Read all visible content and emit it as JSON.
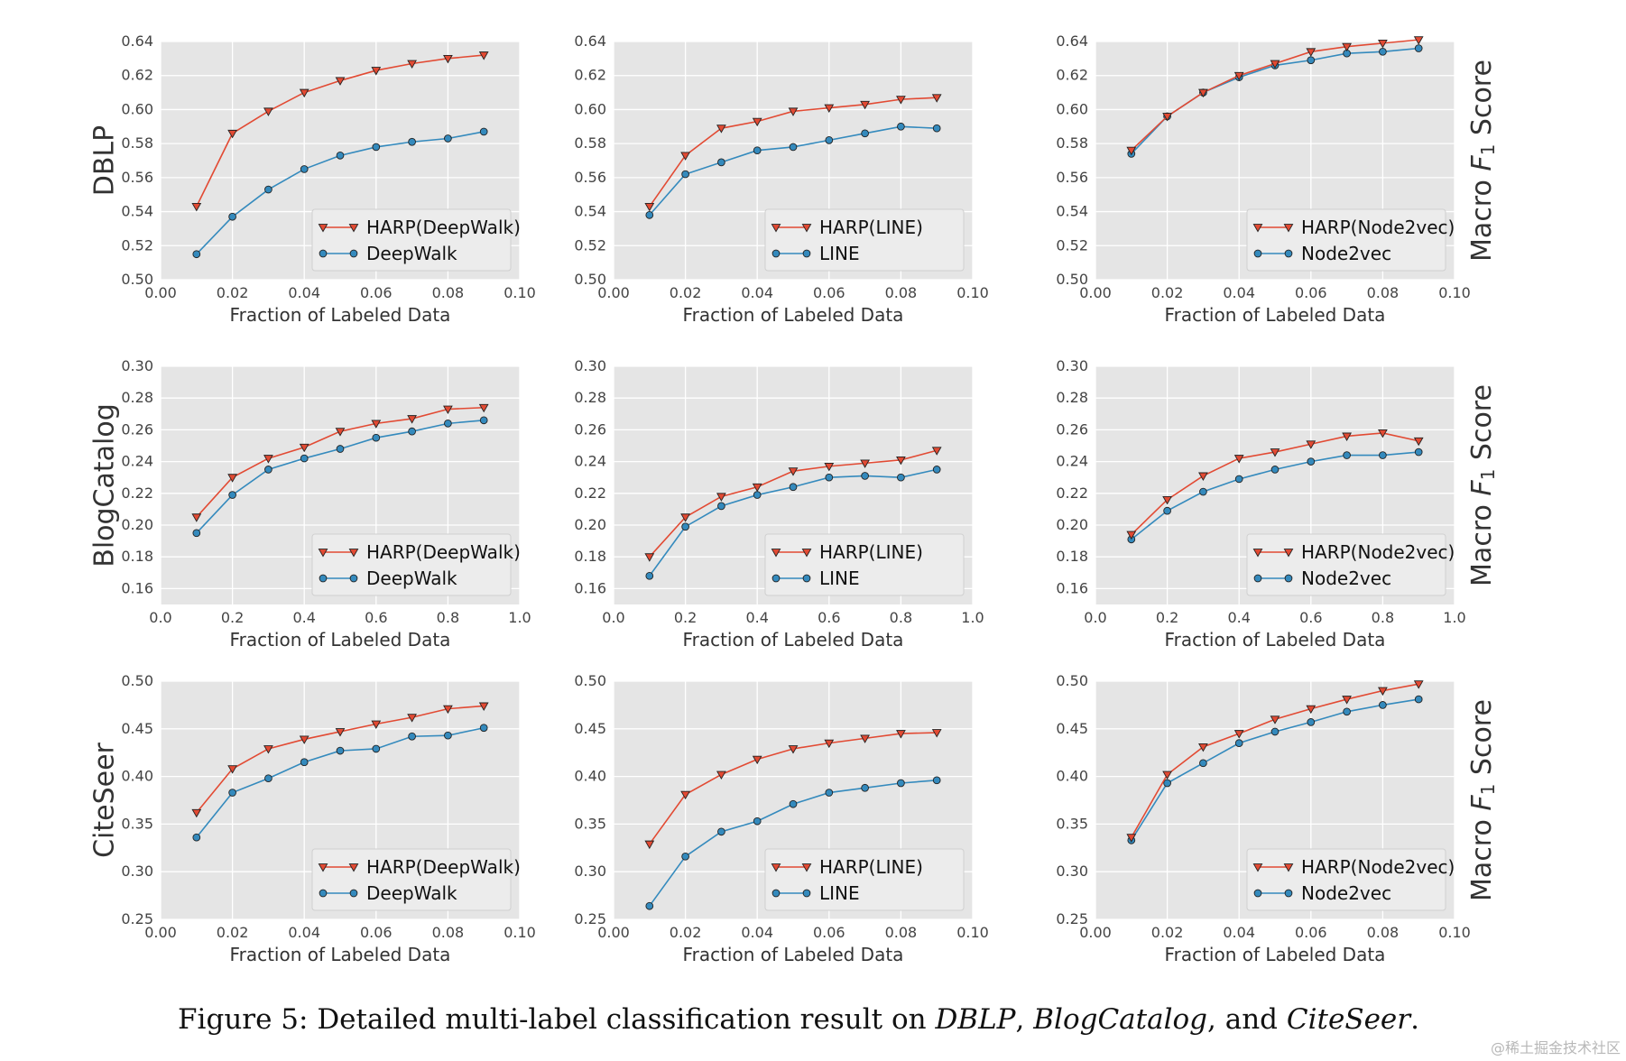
{
  "caption": {
    "prefix": "Figure 5: Detailed multi-label classification result on ",
    "ds1": "DBLP",
    "sep1": ", ",
    "ds2": "BlogCatalog",
    "sep2": ", and ",
    "ds3": "CiteSeer",
    "suffix": "."
  },
  "watermark": "@稀土掘金技术社区",
  "colors": {
    "harp": "#E24A33",
    "base": "#348ABD",
    "panel_bg": "#E5E5E5",
    "grid": "#FFFFFF"
  },
  "chart_data": [
    {
      "type": "line",
      "row": 0,
      "col": 0,
      "ylabel": "DBLP",
      "y2label": "",
      "xlabel": "Fraction of Labeled Data",
      "xlim": [
        0,
        0.1
      ],
      "xticks": [
        "0.00",
        "0.02",
        "0.04",
        "0.06",
        "0.08",
        "0.10"
      ],
      "ylim": [
        0.5,
        0.64
      ],
      "yticks": [
        "0.50",
        "0.52",
        "0.54",
        "0.56",
        "0.58",
        "0.60",
        "0.62",
        "0.64"
      ],
      "legend": "lower-right",
      "x": [
        0.01,
        0.02,
        0.03,
        0.04,
        0.05,
        0.06,
        0.07,
        0.08,
        0.09
      ],
      "series": [
        {
          "name": "HARP(DeepWalk)",
          "marker": "triangle",
          "values": [
            0.543,
            0.586,
            0.599,
            0.61,
            0.617,
            0.623,
            0.627,
            0.63,
            0.632
          ]
        },
        {
          "name": "DeepWalk",
          "marker": "circle",
          "values": [
            0.515,
            0.537,
            0.553,
            0.565,
            0.573,
            0.578,
            0.581,
            0.583,
            0.587
          ]
        }
      ]
    },
    {
      "type": "line",
      "row": 0,
      "col": 1,
      "ylabel": "",
      "y2label": "",
      "xlabel": "Fraction of Labeled Data",
      "xlim": [
        0,
        0.1
      ],
      "xticks": [
        "0.00",
        "0.02",
        "0.04",
        "0.06",
        "0.08",
        "0.10"
      ],
      "ylim": [
        0.5,
        0.64
      ],
      "yticks": [
        "0.50",
        "0.52",
        "0.54",
        "0.56",
        "0.58",
        "0.60",
        "0.62",
        "0.64"
      ],
      "legend": "lower-right",
      "x": [
        0.01,
        0.02,
        0.03,
        0.04,
        0.05,
        0.06,
        0.07,
        0.08,
        0.09
      ],
      "series": [
        {
          "name": "HARP(LINE)",
          "marker": "triangle",
          "values": [
            0.543,
            0.573,
            0.589,
            0.593,
            0.599,
            0.601,
            0.603,
            0.606,
            0.607
          ]
        },
        {
          "name": "LINE",
          "marker": "circle",
          "values": [
            0.538,
            0.562,
            0.569,
            0.576,
            0.578,
            0.582,
            0.586,
            0.59,
            0.589
          ]
        }
      ]
    },
    {
      "type": "line",
      "row": 0,
      "col": 2,
      "ylabel": "",
      "y2label": "Macro F1 Score",
      "xlabel": "Fraction of Labeled Data",
      "xlim": [
        0,
        0.1
      ],
      "xticks": [
        "0.00",
        "0.02",
        "0.04",
        "0.06",
        "0.08",
        "0.10"
      ],
      "ylim": [
        0.5,
        0.64
      ],
      "yticks": [
        "0.50",
        "0.52",
        "0.54",
        "0.56",
        "0.58",
        "0.60",
        "0.62",
        "0.64"
      ],
      "legend": "lower-right",
      "x": [
        0.01,
        0.02,
        0.03,
        0.04,
        0.05,
        0.06,
        0.07,
        0.08,
        0.09
      ],
      "series": [
        {
          "name": "HARP(Node2vec)",
          "marker": "triangle",
          "values": [
            0.576,
            0.596,
            0.61,
            0.62,
            0.627,
            0.634,
            0.637,
            0.639,
            0.641
          ]
        },
        {
          "name": "Node2vec",
          "marker": "circle",
          "values": [
            0.574,
            0.596,
            0.61,
            0.619,
            0.626,
            0.629,
            0.633,
            0.634,
            0.636
          ]
        }
      ]
    },
    {
      "type": "line",
      "row": 1,
      "col": 0,
      "ylabel": "BlogCatalog",
      "y2label": "",
      "xlabel": "Fraction of Labeled Data",
      "xlim": [
        0,
        1.0
      ],
      "xticks": [
        "0.0",
        "0.2",
        "0.4",
        "0.6",
        "0.8",
        "1.0"
      ],
      "ylim": [
        0.15,
        0.3
      ],
      "yticks": [
        "0.16",
        "0.18",
        "0.20",
        "0.22",
        "0.24",
        "0.26",
        "0.28",
        "0.30"
      ],
      "legend": "lower-right",
      "x": [
        0.1,
        0.2,
        0.3,
        0.4,
        0.5,
        0.6,
        0.7,
        0.8,
        0.9
      ],
      "series": [
        {
          "name": "HARP(DeepWalk)",
          "marker": "triangle",
          "values": [
            0.205,
            0.23,
            0.242,
            0.249,
            0.259,
            0.264,
            0.267,
            0.273,
            0.274
          ]
        },
        {
          "name": "DeepWalk",
          "marker": "circle",
          "values": [
            0.195,
            0.219,
            0.235,
            0.242,
            0.248,
            0.255,
            0.259,
            0.264,
            0.266
          ]
        }
      ]
    },
    {
      "type": "line",
      "row": 1,
      "col": 1,
      "ylabel": "",
      "y2label": "",
      "xlabel": "Fraction of Labeled Data",
      "xlim": [
        0,
        1.0
      ],
      "xticks": [
        "0.0",
        "0.2",
        "0.4",
        "0.6",
        "0.8",
        "1.0"
      ],
      "ylim": [
        0.15,
        0.3
      ],
      "yticks": [
        "0.16",
        "0.18",
        "0.20",
        "0.22",
        "0.24",
        "0.26",
        "0.28",
        "0.30"
      ],
      "legend": "lower-right",
      "x": [
        0.1,
        0.2,
        0.3,
        0.4,
        0.5,
        0.6,
        0.7,
        0.8,
        0.9
      ],
      "series": [
        {
          "name": "HARP(LINE)",
          "marker": "triangle",
          "values": [
            0.18,
            0.205,
            0.218,
            0.224,
            0.234,
            0.237,
            0.239,
            0.241,
            0.247
          ]
        },
        {
          "name": "LINE",
          "marker": "circle",
          "values": [
            0.168,
            0.199,
            0.212,
            0.219,
            0.224,
            0.23,
            0.231,
            0.23,
            0.235
          ]
        }
      ]
    },
    {
      "type": "line",
      "row": 1,
      "col": 2,
      "ylabel": "",
      "y2label": "Macro F1 Score",
      "xlabel": "Fraction of Labeled Data",
      "xlim": [
        0,
        1.0
      ],
      "xticks": [
        "0.0",
        "0.2",
        "0.4",
        "0.6",
        "0.8",
        "1.0"
      ],
      "ylim": [
        0.15,
        0.3
      ],
      "yticks": [
        "0.16",
        "0.18",
        "0.20",
        "0.22",
        "0.24",
        "0.26",
        "0.28",
        "0.30"
      ],
      "legend": "lower-right",
      "x": [
        0.1,
        0.2,
        0.3,
        0.4,
        0.5,
        0.6,
        0.7,
        0.8,
        0.9
      ],
      "series": [
        {
          "name": "HARP(Node2vec)",
          "marker": "triangle",
          "values": [
            0.194,
            0.216,
            0.231,
            0.242,
            0.246,
            0.251,
            0.256,
            0.258,
            0.253
          ]
        },
        {
          "name": "Node2vec",
          "marker": "circle",
          "values": [
            0.191,
            0.209,
            0.221,
            0.229,
            0.235,
            0.24,
            0.244,
            0.244,
            0.246
          ]
        }
      ]
    },
    {
      "type": "line",
      "row": 2,
      "col": 0,
      "ylabel": "CiteSeer",
      "y2label": "",
      "xlabel": "Fraction of Labeled Data",
      "xlim": [
        0,
        0.1
      ],
      "xticks": [
        "0.00",
        "0.02",
        "0.04",
        "0.06",
        "0.08",
        "0.10"
      ],
      "ylim": [
        0.25,
        0.5
      ],
      "yticks": [
        "0.25",
        "0.30",
        "0.35",
        "0.40",
        "0.45",
        "0.50"
      ],
      "legend": "lower-right",
      "x": [
        0.01,
        0.02,
        0.03,
        0.04,
        0.05,
        0.06,
        0.07,
        0.08,
        0.09
      ],
      "series": [
        {
          "name": "HARP(DeepWalk)",
          "marker": "triangle",
          "values": [
            0.362,
            0.408,
            0.429,
            0.439,
            0.447,
            0.455,
            0.462,
            0.471,
            0.474
          ]
        },
        {
          "name": "DeepWalk",
          "marker": "circle",
          "values": [
            0.336,
            0.383,
            0.398,
            0.415,
            0.427,
            0.429,
            0.442,
            0.443,
            0.451
          ]
        }
      ]
    },
    {
      "type": "line",
      "row": 2,
      "col": 1,
      "ylabel": "",
      "y2label": "",
      "xlabel": "Fraction of Labeled Data",
      "xlim": [
        0,
        0.1
      ],
      "xticks": [
        "0.00",
        "0.02",
        "0.04",
        "0.06",
        "0.08",
        "0.10"
      ],
      "ylim": [
        0.25,
        0.5
      ],
      "yticks": [
        "0.25",
        "0.30",
        "0.35",
        "0.40",
        "0.45",
        "0.50"
      ],
      "legend": "lower-right",
      "x": [
        0.01,
        0.02,
        0.03,
        0.04,
        0.05,
        0.06,
        0.07,
        0.08,
        0.09
      ],
      "series": [
        {
          "name": "HARP(LINE)",
          "marker": "triangle",
          "values": [
            0.329,
            0.381,
            0.402,
            0.418,
            0.429,
            0.435,
            0.44,
            0.445,
            0.446
          ]
        },
        {
          "name": "LINE",
          "marker": "circle",
          "values": [
            0.264,
            0.316,
            0.342,
            0.353,
            0.371,
            0.383,
            0.388,
            0.393,
            0.396
          ]
        }
      ]
    },
    {
      "type": "line",
      "row": 2,
      "col": 2,
      "ylabel": "",
      "y2label": "Macro F1 Score",
      "xlabel": "Fraction of Labeled Data",
      "xlim": [
        0,
        0.1
      ],
      "xticks": [
        "0.00",
        "0.02",
        "0.04",
        "0.06",
        "0.08",
        "0.10"
      ],
      "ylim": [
        0.25,
        0.5
      ],
      "yticks": [
        "0.25",
        "0.30",
        "0.35",
        "0.40",
        "0.45",
        "0.50"
      ],
      "legend": "lower-right",
      "x": [
        0.01,
        0.02,
        0.03,
        0.04,
        0.05,
        0.06,
        0.07,
        0.08,
        0.09
      ],
      "series": [
        {
          "name": "HARP(Node2vec)",
          "marker": "triangle",
          "values": [
            0.336,
            0.402,
            0.431,
            0.445,
            0.46,
            0.471,
            0.481,
            0.49,
            0.497
          ]
        },
        {
          "name": "Node2vec",
          "marker": "circle",
          "values": [
            0.333,
            0.393,
            0.414,
            0.435,
            0.447,
            0.457,
            0.468,
            0.475,
            0.481
          ]
        }
      ]
    }
  ]
}
